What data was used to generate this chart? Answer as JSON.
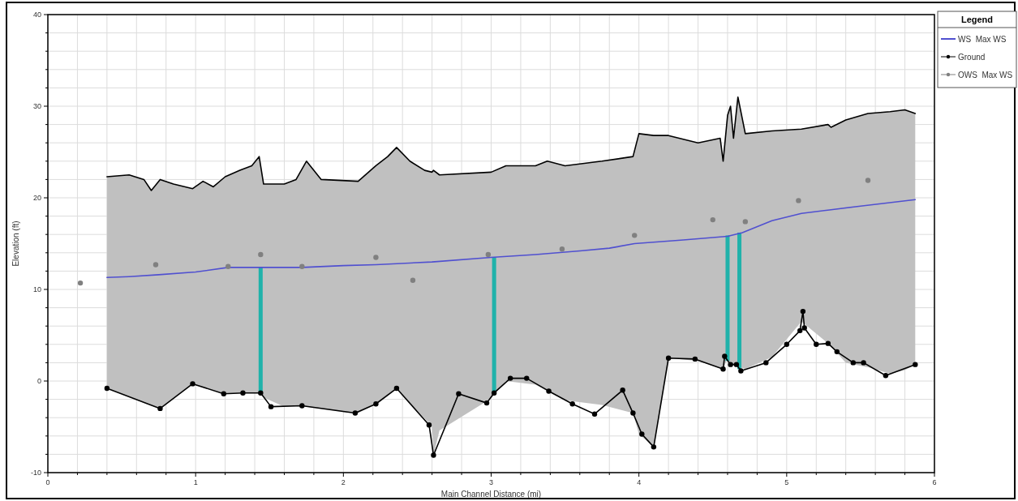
{
  "chart_data": {
    "type": "line",
    "xlabel": "Main Channel Distance (mi)",
    "ylabel": "Elevation (ft)",
    "legend_title": "Legend",
    "legend": "right",
    "grid": true,
    "xlim": [
      0,
      6
    ],
    "ylim": [
      -10,
      40
    ],
    "xticks": [
      0,
      {
        "value": 0.2,
        "label": null
      },
      {
        "value": 0.4,
        "label": null
      },
      {
        "value": 0.6,
        "label": null
      },
      {
        "value": 0.8,
        "label": null
      },
      1,
      {
        "value": 1.2,
        "label": null
      },
      {
        "value": 1.4,
        "label": null
      },
      {
        "value": 1.6,
        "label": null
      },
      {
        "value": 1.8,
        "label": null
      },
      2,
      {
        "value": 2.2,
        "label": null
      },
      {
        "value": 2.4,
        "label": null
      },
      {
        "value": 2.6,
        "label": null
      },
      {
        "value": 2.8,
        "label": null
      },
      3,
      {
        "value": 3.2,
        "label": null
      },
      {
        "value": 3.4,
        "label": null
      },
      {
        "value": 3.6,
        "label": null
      },
      {
        "value": 3.8,
        "label": null
      },
      4,
      {
        "value": 4.2,
        "label": null
      },
      {
        "value": 4.4,
        "label": null
      },
      {
        "value": 4.6,
        "label": null
      },
      {
        "value": 4.8,
        "label": null
      },
      5,
      {
        "value": 5.2,
        "label": null
      },
      {
        "value": 5.4,
        "label": null
      },
      {
        "value": 5.6,
        "label": null
      },
      {
        "value": 5.8,
        "label": null
      },
      6
    ],
    "yticks": [
      -10,
      {
        "value": -8,
        "label": null
      },
      {
        "value": -6,
        "label": null
      },
      {
        "value": -4,
        "label": null
      },
      {
        "value": -2,
        "label": null
      },
      0,
      {
        "value": 2,
        "label": null
      },
      {
        "value": 4,
        "label": null
      },
      {
        "value": 6,
        "label": null
      },
      {
        "value": 8,
        "label": null
      },
      10,
      {
        "value": 12,
        "label": null
      },
      {
        "value": 14,
        "label": null
      },
      {
        "value": 16,
        "label": null
      },
      {
        "value": 18,
        "label": null
      },
      20,
      {
        "value": 22,
        "label": null
      },
      {
        "value": 24,
        "label": null
      },
      {
        "value": 26,
        "label": null
      },
      {
        "value": 28,
        "label": null
      },
      30,
      {
        "value": 32,
        "label": null
      },
      {
        "value": 34,
        "label": null
      },
      {
        "value": 36,
        "label": null
      },
      {
        "value": 38,
        "label": null
      },
      40
    ],
    "series": [
      {
        "color": "#000000",
        "x": [
          0.4,
          0.55,
          0.65,
          0.7,
          0.76,
          0.85,
          0.98,
          1.05,
          1.12,
          1.2,
          1.3,
          1.38,
          1.43,
          1.46,
          1.6,
          1.68,
          1.75,
          1.85,
          2.1,
          2.22,
          2.3,
          2.36,
          2.45,
          2.55,
          2.6,
          2.61,
          2.65,
          3.0,
          3.1,
          3.3,
          3.38,
          3.5,
          3.75,
          3.96,
          4.0,
          4.1,
          4.2,
          4.4,
          4.55,
          4.57,
          4.6,
          4.62,
          4.64,
          4.67,
          4.72,
          4.9,
          5.1,
          5.28,
          5.3,
          5.4,
          5.55,
          5.7,
          5.8,
          5.87
        ],
        "values": [
          22.3,
          22.5,
          22.0,
          20.8,
          22.0,
          21.5,
          21.0,
          21.8,
          21.2,
          22.3,
          23.0,
          23.5,
          24.5,
          21.5,
          21.5,
          22.0,
          24.0,
          22.0,
          21.8,
          23.5,
          24.5,
          25.5,
          24.0,
          23.0,
          22.8,
          23.0,
          22.5,
          22.8,
          23.5,
          23.5,
          24.0,
          23.5,
          24.0,
          24.5,
          27.0,
          26.8,
          26.8,
          26.0,
          26.5,
          24.0,
          29.0,
          30.0,
          26.5,
          31.0,
          27.0,
          27.3,
          27.5,
          28.0,
          27.7,
          28.5,
          29.2,
          29.4,
          29.6,
          29.2
        ],
        "upper": [
          22.3,
          22.5,
          22.0,
          20.8,
          22.0,
          21.5,
          21.0,
          21.8,
          21.2,
          22.3,
          23.0,
          23.5,
          24.5,
          21.5,
          21.5,
          22.0,
          24.0,
          22.0,
          21.8,
          23.5,
          24.5,
          25.5,
          24.0,
          23.0,
          22.8,
          23.0,
          22.5,
          22.8,
          23.5,
          23.5,
          24.0,
          23.5,
          24.0,
          24.5,
          27.0,
          26.8,
          26.8,
          26.0,
          26.5,
          24.0,
          29.0,
          30.0,
          26.5,
          31.0,
          27.0,
          27.3,
          27.5,
          28.0,
          27.7,
          28.5,
          29.2,
          29.4,
          29.6,
          29.2
        ],
        "lower": [
          -0.8,
          -1.7,
          -2.4,
          -2.7,
          -3.0,
          -1.9,
          -0.3,
          -0.7,
          -1.0,
          -1.4,
          -1.3,
          -1.3,
          -1.3,
          -1.8,
          -2.8,
          -2.7,
          -2.8,
          -3.0,
          -3.5,
          -2.5,
          -1.6,
          -0.8,
          -2.4,
          -4.1,
          -5.0,
          -8.1,
          -5.4,
          -1.9,
          0.0,
          -0.4,
          -1.1,
          -2.1,
          -2.6,
          -3.5,
          -5.8,
          -7.2,
          2.5,
          2.2,
          1.4,
          1.3,
          2.5,
          1.8,
          1.8,
          1.6,
          1.3,
          2.6,
          6.5,
          4.1,
          3.8,
          2.0,
          1.5,
          0.8,
          1.2,
          1.8
        ]
      },
      {
        "type": "bar",
        "color": "#20b2aa",
        "x": [
          1.44,
          3.02,
          4.6,
          4.68
        ],
        "base": [
          -1.3,
          -1.3,
          2.2,
          1.3
        ],
        "values": [
          13.7,
          14.8,
          13.7,
          14.9
        ]
      },
      {
        "name": "WS  Max WS",
        "color": "#5050d0",
        "marker": "none",
        "x": [
          0.4,
          0.55,
          0.75,
          1.0,
          1.22,
          1.44,
          1.72,
          2.0,
          2.22,
          2.6,
          3.0,
          3.3,
          3.6,
          3.8,
          3.97,
          4.3,
          4.6,
          4.7,
          4.9,
          5.1,
          5.3,
          5.5,
          5.87
        ],
        "values": [
          11.3,
          11.4,
          11.6,
          11.9,
          12.4,
          12.4,
          12.4,
          12.6,
          12.7,
          13.0,
          13.5,
          13.8,
          14.2,
          14.5,
          15.0,
          15.4,
          15.8,
          16.2,
          17.5,
          18.3,
          18.7,
          19.1,
          19.8
        ]
      },
      {
        "name": "Ground",
        "color": "#000000",
        "marker": "circle",
        "x": [
          0.4,
          0.76,
          0.98,
          1.19,
          1.32,
          1.44,
          1.51,
          1.72,
          2.08,
          2.22,
          2.36,
          2.58,
          2.61,
          2.78,
          2.97,
          3.02,
          3.13,
          3.24,
          3.39,
          3.55,
          3.7,
          3.89,
          3.96,
          4.02,
          4.1,
          4.2,
          4.38,
          4.57,
          4.58,
          4.62,
          4.66,
          4.69,
          4.86,
          5.0,
          5.09,
          5.11,
          5.12,
          5.2,
          5.28,
          5.34,
          5.45,
          5.52,
          5.67,
          5.87
        ],
        "values": [
          -0.8,
          -3.0,
          -0.3,
          -1.4,
          -1.3,
          -1.3,
          -2.8,
          -2.7,
          -3.5,
          -2.5,
          -0.8,
          -4.8,
          -8.1,
          -1.4,
          -2.4,
          -1.3,
          0.3,
          0.3,
          -1.1,
          -2.5,
          -3.6,
          -1.0,
          -3.5,
          -5.8,
          -7.2,
          2.5,
          2.4,
          1.3,
          2.7,
          1.8,
          1.8,
          1.1,
          2.0,
          4.0,
          5.5,
          7.6,
          5.8,
          4.0,
          4.1,
          3.2,
          2.0,
          2.0,
          0.6,
          1.8
        ]
      },
      {
        "name": "OWS  Max WS",
        "type": "scatter",
        "color": "#808080",
        "marker": "circle",
        "x": [
          0.22,
          0.73,
          1.22,
          1.44,
          1.72,
          2.22,
          2.47,
          2.98,
          3.48,
          3.97,
          4.5,
          4.72,
          5.08,
          5.55
        ],
        "values": [
          10.7,
          12.7,
          12.5,
          13.8,
          12.5,
          13.5,
          11.0,
          13.8,
          14.4,
          15.9,
          17.6,
          17.4,
          19.7,
          21.9
        ]
      }
    ]
  }
}
